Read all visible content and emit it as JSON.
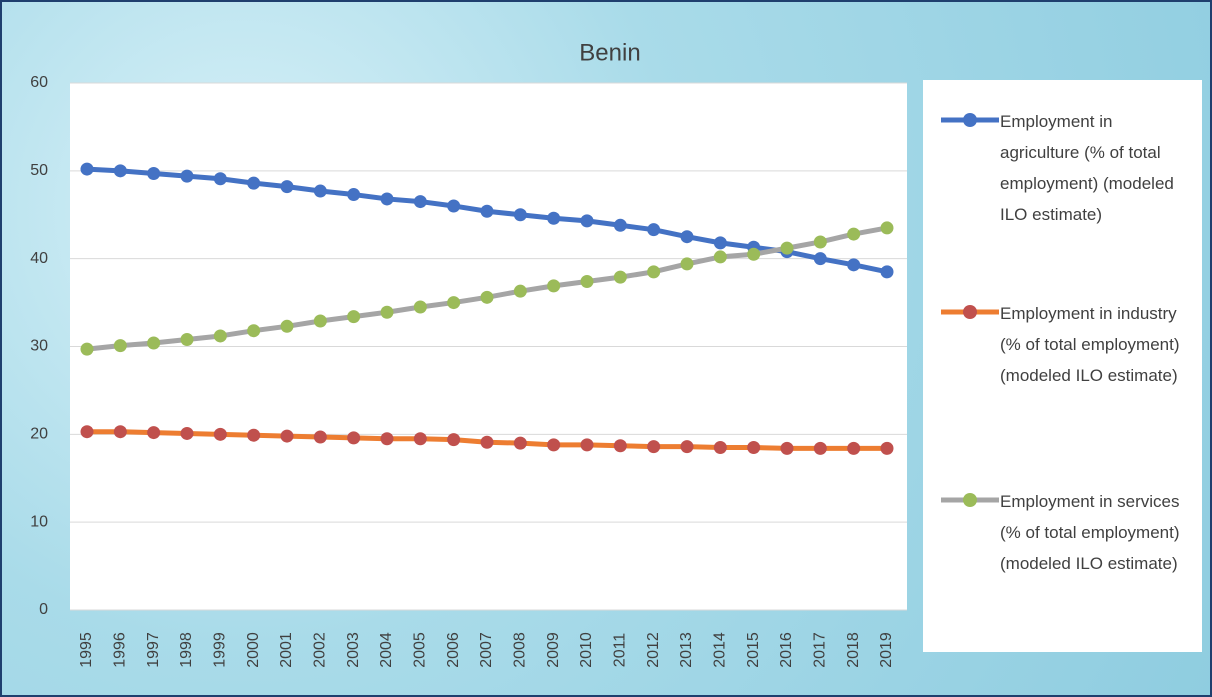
{
  "chart_data": {
    "type": "line",
    "title": "Benin",
    "categories": [
      "1995",
      "1996",
      "1997",
      "1998",
      "1999",
      "2000",
      "2001",
      "2002",
      "2003",
      "2004",
      "2005",
      "2006",
      "2007",
      "2008",
      "2009",
      "2010",
      "2011",
      "2012",
      "2013",
      "2014",
      "2015",
      "2016",
      "2017",
      "2018",
      "2019"
    ],
    "series": [
      {
        "name": "Employment in agriculture (% of total employment) (modeled ILO estimate)",
        "color": "#4472c4",
        "marker_color": "#4472c4",
        "values": [
          50.2,
          50.0,
          49.7,
          49.4,
          49.1,
          48.6,
          48.2,
          47.7,
          47.3,
          46.8,
          46.5,
          46.0,
          45.4,
          45.0,
          44.6,
          44.3,
          43.8,
          43.3,
          42.5,
          41.8,
          41.3,
          40.8,
          40.0,
          39.3,
          38.5
        ]
      },
      {
        "name": "Employment in industry (% of total employment) (modeled ILO estimate)",
        "color": "#ed7d31",
        "marker_color": "#c0504d",
        "values": [
          20.3,
          20.3,
          20.2,
          20.1,
          20.0,
          19.9,
          19.8,
          19.7,
          19.6,
          19.5,
          19.5,
          19.4,
          19.1,
          19.0,
          18.8,
          18.8,
          18.7,
          18.6,
          18.6,
          18.5,
          18.5,
          18.4,
          18.4,
          18.4,
          18.4
        ]
      },
      {
        "name": "Employment in services (% of total employment) (modeled ILO estimate)",
        "color": "#a5a5a5",
        "marker_color": "#9bbb59",
        "values": [
          29.7,
          30.1,
          30.4,
          30.8,
          31.2,
          31.8,
          32.3,
          32.9,
          33.4,
          33.9,
          34.5,
          35.0,
          35.6,
          36.3,
          36.9,
          37.4,
          37.9,
          38.5,
          39.4,
          40.2,
          40.5,
          41.2,
          41.9,
          42.8,
          43.5
        ]
      }
    ],
    "ylim": [
      0,
      60
    ],
    "yticks": [
      0,
      10,
      20,
      30,
      40,
      50,
      60
    ],
    "grid": true
  }
}
